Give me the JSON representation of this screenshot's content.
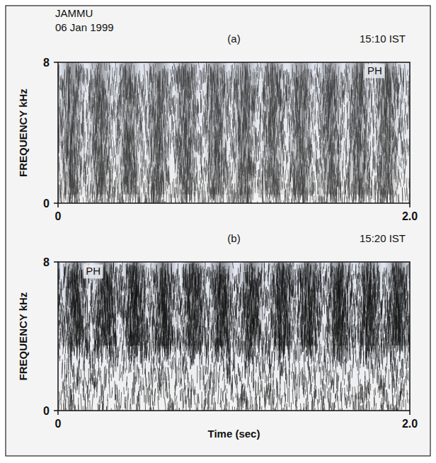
{
  "chart_data": [
    {
      "type": "spectrogram",
      "header": [
        "JAMMU",
        "06 Jan 1999"
      ],
      "title": "(a)",
      "time_label": "15:10 IST",
      "ylabel": "FREQUENCY kHz",
      "xlim": [
        0,
        2
      ],
      "ylim": [
        0,
        8
      ],
      "xticks": [
        0,
        {
          "value": 2,
          "label": "2.0"
        }
      ],
      "yticks": [
        0,
        8
      ],
      "bursts": [
        0.08,
        0.24,
        0.4,
        0.57,
        0.73,
        0.9,
        1.06,
        1.22,
        1.38,
        1.55,
        1.71,
        1.87
      ],
      "burst_band": [
        0.5,
        8
      ],
      "color": "#3a3a3a",
      "annotations": [
        {
          "text": "PH",
          "x": 1.8,
          "y": 7.3
        }
      ]
    },
    {
      "type": "spectrogram",
      "title": "(b)",
      "time_label": "15:20 IST",
      "ylabel": "FREQUENCY kHz",
      "xlabel": "Time (sec)",
      "xlim": [
        0,
        2
      ],
      "ylim": [
        0,
        8
      ],
      "xticks": [
        0,
        {
          "value": 2,
          "label": "2.0"
        }
      ],
      "yticks": [
        0,
        8
      ],
      "bursts": [
        0.1,
        0.27,
        0.44,
        0.6,
        0.77,
        0.93,
        1.1,
        1.27,
        1.43,
        1.6,
        1.77,
        1.93
      ],
      "burst_band": [
        3.5,
        8
      ],
      "color": "#111111",
      "annotations": [
        {
          "text": "PH",
          "x": 0.2,
          "y": 7.3
        }
      ]
    }
  ]
}
